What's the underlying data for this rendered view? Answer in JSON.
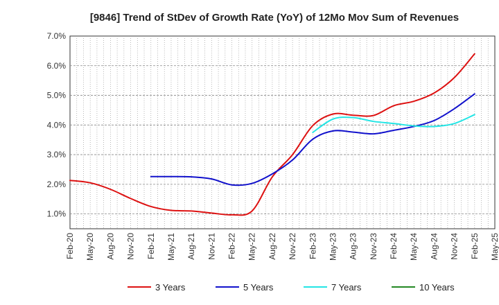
{
  "chart_data": {
    "type": "line",
    "title": "[9846]  Trend of StDev of Growth Rate (YoY) of 12Mo Mov Sum of Revenues",
    "xlabel": "",
    "ylabel": "",
    "ylim": [
      0.5,
      7.0
    ],
    "yticks": [
      1.0,
      2.0,
      3.0,
      4.0,
      5.0,
      6.0,
      7.0
    ],
    "ytick_labels": [
      "1.0%",
      "2.0%",
      "3.0%",
      "4.0%",
      "5.0%",
      "6.0%",
      "7.0%"
    ],
    "categories": [
      "Feb-20",
      "May-20",
      "Aug-20",
      "Nov-20",
      "Feb-21",
      "May-21",
      "Aug-21",
      "Nov-21",
      "Feb-22",
      "May-22",
      "Aug-22",
      "Nov-22",
      "Feb-23",
      "May-23",
      "Aug-23",
      "Nov-23",
      "Feb-24",
      "May-24",
      "Aug-24",
      "Nov-24",
      "Feb-25",
      "May-25"
    ],
    "grid": true,
    "legend_position": "bottom",
    "series": [
      {
        "name": "3 Years",
        "color": "#dd1111",
        "values": [
          2.13,
          2.05,
          1.83,
          1.52,
          1.25,
          1.12,
          1.1,
          1.03,
          0.97,
          1.1,
          2.25,
          3.0,
          3.98,
          4.37,
          4.33,
          4.32,
          4.65,
          4.8,
          5.08,
          5.6,
          6.4,
          null
        ]
      },
      {
        "name": "5 Years",
        "color": "#1111cc",
        "values": [
          null,
          null,
          null,
          null,
          2.26,
          2.26,
          2.25,
          2.18,
          1.98,
          2.03,
          2.35,
          2.82,
          3.52,
          3.8,
          3.76,
          3.7,
          3.82,
          3.95,
          4.15,
          4.55,
          5.05,
          null
        ]
      },
      {
        "name": "7 Years",
        "color": "#22e5e5",
        "values": [
          null,
          null,
          null,
          null,
          null,
          null,
          null,
          null,
          null,
          null,
          null,
          null,
          3.75,
          4.2,
          4.25,
          4.12,
          4.05,
          3.97,
          3.95,
          4.05,
          4.35,
          null
        ]
      },
      {
        "name": "10 Years",
        "color": "#228822",
        "values": [
          null,
          null,
          null,
          null,
          null,
          null,
          null,
          null,
          null,
          null,
          null,
          null,
          null,
          null,
          null,
          null,
          null,
          null,
          null,
          null,
          null,
          null
        ]
      }
    ]
  }
}
